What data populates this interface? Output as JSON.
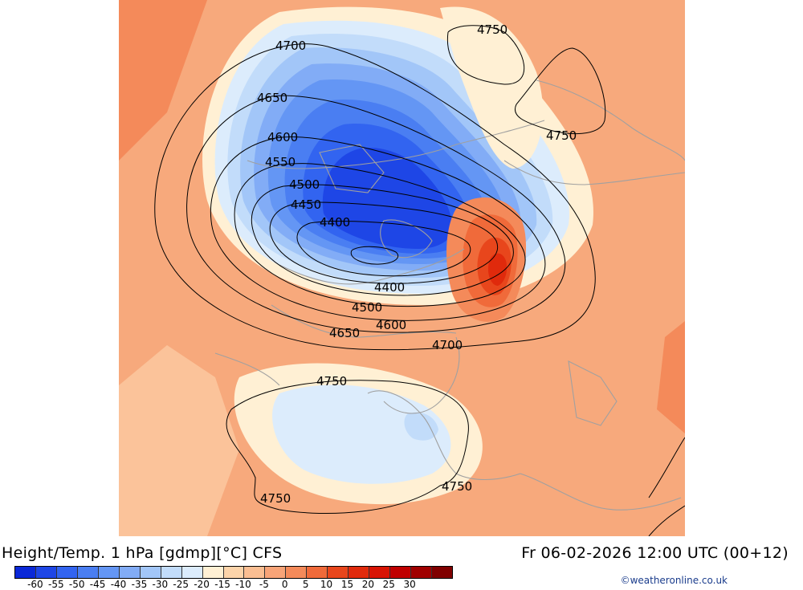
{
  "header": {
    "title": "Height/Temp. 1 hPa [gdmp][°C] CFS",
    "valid_time": "Fr 06-02-2026 12:00 UTC (00+12)"
  },
  "credit": "©weatheronline.co.uk",
  "legend": {
    "colors": [
      "#0a28d8",
      "#1e46e6",
      "#3264f0",
      "#4a7ef2",
      "#6496f4",
      "#82acf6",
      "#a2c6f8",
      "#c2dcfa",
      "#dcecfc",
      "#fff0d4",
      "#fcd4aa",
      "#fabe92",
      "#f8a478",
      "#f48a5a",
      "#f06a3a",
      "#e8461c",
      "#e02a0c",
      "#d81404",
      "#c00000",
      "#a00000",
      "#800000"
    ],
    "ticks": [
      "-60",
      "-55",
      "-50",
      "-45",
      "-40",
      "-35",
      "-30",
      "-25",
      "-20",
      "-15",
      "-10",
      "-5",
      "0",
      "5",
      "10",
      "15",
      "20",
      "25",
      "30"
    ]
  },
  "contour_labels": [
    "4700",
    "4650",
    "4600",
    "4550",
    "4500",
    "4450",
    "4400",
    "4400",
    "4500",
    "4600",
    "4650",
    "4700",
    "4750",
    "4750",
    "4750",
    "4750",
    "4750"
  ]
}
